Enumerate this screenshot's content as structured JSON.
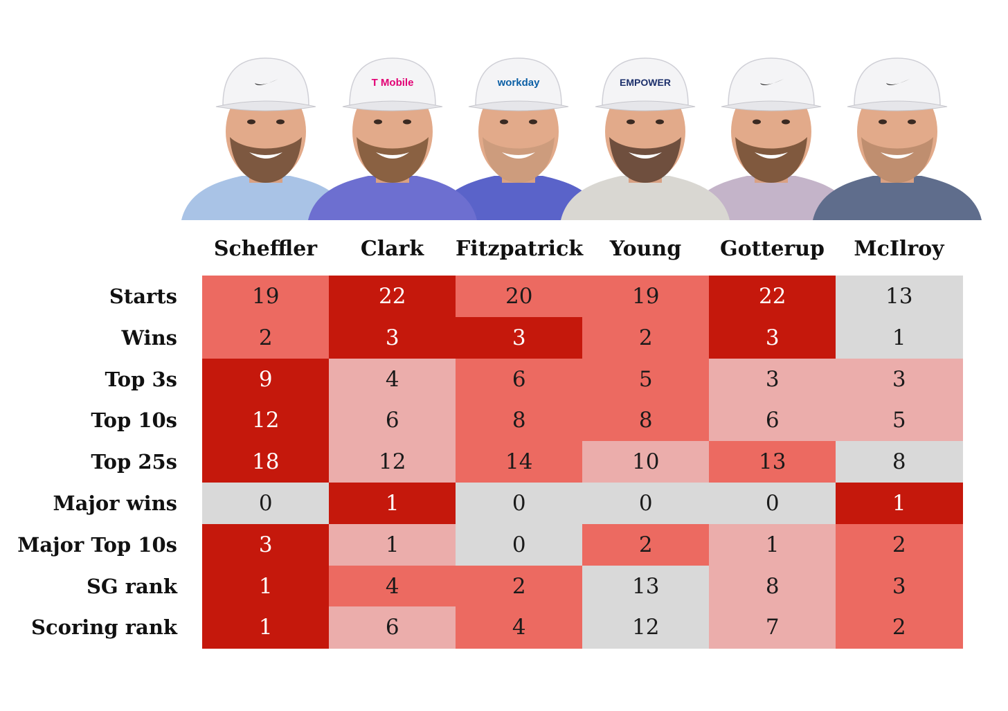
{
  "chart_data": {
    "type": "heatmap",
    "columns": [
      "Scheffler",
      "Clark",
      "Fitzpatrick",
      "Young",
      "Gotterup",
      "McIlroy"
    ],
    "rows": [
      "Starts",
      "Wins",
      "Top 3s",
      "Top 10s",
      "Top 25s",
      "Major wins",
      "Major Top 10s",
      "SG rank",
      "Scoring rank"
    ],
    "values": [
      [
        19,
        22,
        20,
        19,
        22,
        13
      ],
      [
        2,
        3,
        3,
        2,
        3,
        1
      ],
      [
        9,
        4,
        6,
        5,
        3,
        3
      ],
      [
        12,
        6,
        8,
        8,
        6,
        5
      ],
      [
        18,
        12,
        14,
        10,
        13,
        8
      ],
      [
        0,
        1,
        0,
        0,
        0,
        1
      ],
      [
        3,
        1,
        0,
        2,
        1,
        2
      ],
      [
        1,
        4,
        2,
        13,
        8,
        3
      ],
      [
        1,
        6,
        4,
        12,
        7,
        2
      ]
    ],
    "shade_levels": [
      [
        2,
        3,
        2,
        2,
        3,
        0
      ],
      [
        2,
        3,
        3,
        2,
        3,
        0
      ],
      [
        3,
        1,
        2,
        2,
        1,
        1
      ],
      [
        3,
        1,
        2,
        2,
        1,
        1
      ],
      [
        3,
        1,
        2,
        1,
        2,
        0
      ],
      [
        0,
        3,
        0,
        0,
        0,
        3
      ],
      [
        3,
        1,
        0,
        2,
        1,
        2
      ],
      [
        3,
        2,
        2,
        0,
        1,
        2
      ],
      [
        3,
        1,
        2,
        0,
        1,
        2
      ]
    ],
    "colors": {
      "level_0": "#d9d9d9",
      "level_1": "#ebadab",
      "level_2": "#ec6a61",
      "level_3": "#c5180c",
      "dark_text": "#1a1a1a",
      "light_text": "#ffffff"
    },
    "cap_logos": [
      "",
      "T Mobile",
      "workday",
      "EMPOWER",
      "",
      ""
    ],
    "cap_icons": [
      "swoosh-icon",
      "",
      "",
      "",
      "swoosh-icon",
      "swoosh-icon"
    ]
  }
}
